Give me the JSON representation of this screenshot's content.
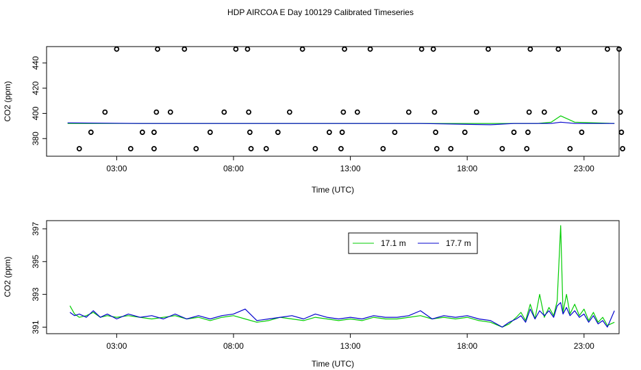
{
  "title": "HDP AIRCOA E  Day 100129  Calibrated Timeseries",
  "chart_data": [
    {
      "type": "scatter",
      "xlabel": "Time (UTC)",
      "ylabel": "CO2 (ppm)",
      "xlim": [
        0.0,
        24.5
      ],
      "ylim": [
        366,
        453
      ],
      "xticks": [
        3,
        8,
        13,
        18,
        23
      ],
      "xtick_labels": [
        "03:00",
        "08:00",
        "13:00",
        "18:00",
        "23:00"
      ],
      "yticks": [
        380,
        400,
        420,
        440
      ],
      "grid": false,
      "points": [
        {
          "x": 1.4,
          "y": 372
        },
        {
          "x": 1.9,
          "y": 385
        },
        {
          "x": 2.5,
          "y": 401
        },
        {
          "x": 3.0,
          "y": 451
        },
        {
          "x": 3.6,
          "y": 372
        },
        {
          "x": 4.1,
          "y": 385
        },
        {
          "x": 4.6,
          "y": 372
        },
        {
          "x": 4.6,
          "y": 385
        },
        {
          "x": 4.7,
          "y": 401
        },
        {
          "x": 4.75,
          "y": 451
        },
        {
          "x": 5.3,
          "y": 401
        },
        {
          "x": 5.9,
          "y": 451
        },
        {
          "x": 6.4,
          "y": 372
        },
        {
          "x": 7.0,
          "y": 385
        },
        {
          "x": 7.6,
          "y": 401
        },
        {
          "x": 8.1,
          "y": 451
        },
        {
          "x": 8.6,
          "y": 451
        },
        {
          "x": 8.65,
          "y": 401
        },
        {
          "x": 8.7,
          "y": 385
        },
        {
          "x": 8.75,
          "y": 372
        },
        {
          "x": 9.4,
          "y": 372
        },
        {
          "x": 9.9,
          "y": 385
        },
        {
          "x": 10.4,
          "y": 401
        },
        {
          "x": 10.95,
          "y": 451
        },
        {
          "x": 11.5,
          "y": 372
        },
        {
          "x": 12.1,
          "y": 385
        },
        {
          "x": 12.6,
          "y": 372
        },
        {
          "x": 12.65,
          "y": 385
        },
        {
          "x": 12.7,
          "y": 401
        },
        {
          "x": 12.75,
          "y": 451
        },
        {
          "x": 13.3,
          "y": 401
        },
        {
          "x": 13.85,
          "y": 451
        },
        {
          "x": 14.4,
          "y": 372
        },
        {
          "x": 14.9,
          "y": 385
        },
        {
          "x": 15.5,
          "y": 401
        },
        {
          "x": 16.05,
          "y": 451
        },
        {
          "x": 16.55,
          "y": 451
        },
        {
          "x": 16.6,
          "y": 401
        },
        {
          "x": 16.65,
          "y": 385
        },
        {
          "x": 16.7,
          "y": 372
        },
        {
          "x": 17.3,
          "y": 372
        },
        {
          "x": 17.9,
          "y": 385
        },
        {
          "x": 18.4,
          "y": 401
        },
        {
          "x": 18.9,
          "y": 451
        },
        {
          "x": 19.5,
          "y": 372
        },
        {
          "x": 20.0,
          "y": 385
        },
        {
          "x": 20.55,
          "y": 372
        },
        {
          "x": 20.6,
          "y": 385
        },
        {
          "x": 20.65,
          "y": 401
        },
        {
          "x": 20.7,
          "y": 451
        },
        {
          "x": 21.3,
          "y": 401
        },
        {
          "x": 21.9,
          "y": 451
        },
        {
          "x": 22.4,
          "y": 372
        },
        {
          "x": 22.9,
          "y": 385
        },
        {
          "x": 23.45,
          "y": 401
        },
        {
          "x": 24.0,
          "y": 451
        },
        {
          "x": 24.5,
          "y": 451
        },
        {
          "x": 24.55,
          "y": 401
        },
        {
          "x": 24.6,
          "y": 385
        },
        {
          "x": 24.65,
          "y": 372
        }
      ],
      "series": [
        {
          "color": "#00cc00",
          "x": [
            0.9,
            4,
            8,
            12,
            16,
            19,
            20,
            21,
            21.6,
            22.0,
            22.6,
            24.3
          ],
          "y": [
            392,
            392,
            392,
            392,
            392,
            392,
            392,
            392,
            393,
            398,
            393,
            392
          ]
        },
        {
          "color": "#0000cc",
          "x": [
            0.9,
            4,
            8,
            12,
            16,
            19,
            20,
            21,
            21.6,
            22.0,
            22.6,
            24.3
          ],
          "y": [
            392.5,
            392,
            392,
            392,
            392,
            391,
            392,
            392,
            392,
            393,
            392,
            392
          ]
        }
      ]
    },
    {
      "type": "line",
      "xlabel": "Time (UTC)",
      "ylabel": "CO2 (ppm)",
      "xlim": [
        0.0,
        24.5
      ],
      "ylim": [
        390.6,
        397.5
      ],
      "xticks": [
        3,
        8,
        13,
        18,
        23
      ],
      "xtick_labels": [
        "03:00",
        "08:00",
        "13:00",
        "18:00",
        "23:00"
      ],
      "yticks": [
        391,
        393,
        395,
        397
      ],
      "grid": false,
      "legend": "top-center",
      "series": [
        {
          "name": "17.1 m",
          "color": "#00cc00",
          "x": [
            1.0,
            1.2,
            1.4,
            1.7,
            2.0,
            2.3,
            2.6,
            3.0,
            3.5,
            4.0,
            4.5,
            5.0,
            5.5,
            6.0,
            6.5,
            7.0,
            7.5,
            8.0,
            8.5,
            9.0,
            9.5,
            10.0,
            10.5,
            11.0,
            11.5,
            12.0,
            12.5,
            13.0,
            13.5,
            14.0,
            14.5,
            15.0,
            15.5,
            16.0,
            16.5,
            17.0,
            17.5,
            18.0,
            18.5,
            19.0,
            19.5,
            19.8,
            20.1,
            20.3,
            20.5,
            20.7,
            20.9,
            21.1,
            21.3,
            21.5,
            21.7,
            21.85,
            22.0,
            22.1,
            22.25,
            22.4,
            22.6,
            22.8,
            23.0,
            23.2,
            23.4,
            23.6,
            23.8,
            24.0,
            24.3
          ],
          "y": [
            392.3,
            391.8,
            391.6,
            391.7,
            391.9,
            391.6,
            391.7,
            391.6,
            391.7,
            391.6,
            391.5,
            391.6,
            391.7,
            391.5,
            391.6,
            391.4,
            391.6,
            391.7,
            391.5,
            391.3,
            391.4,
            391.6,
            391.5,
            391.4,
            391.6,
            391.5,
            391.4,
            391.5,
            391.4,
            391.6,
            391.5,
            391.5,
            391.6,
            391.7,
            391.5,
            391.6,
            391.5,
            391.6,
            391.4,
            391.3,
            391.0,
            391.2,
            391.6,
            391.9,
            391.4,
            392.4,
            391.5,
            393.0,
            391.6,
            392.2,
            391.7,
            392.6,
            397.2,
            391.9,
            393.0,
            391.8,
            392.4,
            391.7,
            392.1,
            391.4,
            391.9,
            391.3,
            391.6,
            391.1,
            391.3
          ]
        },
        {
          "name": "17.7 m",
          "color": "#0000cc",
          "x": [
            1.0,
            1.2,
            1.4,
            1.7,
            2.0,
            2.3,
            2.6,
            3.0,
            3.5,
            4.0,
            4.5,
            5.0,
            5.5,
            6.0,
            6.5,
            7.0,
            7.5,
            8.0,
            8.5,
            9.0,
            9.5,
            10.0,
            10.5,
            11.0,
            11.5,
            12.0,
            12.5,
            13.0,
            13.5,
            14.0,
            14.5,
            15.0,
            15.5,
            16.0,
            16.5,
            17.0,
            17.5,
            18.0,
            18.5,
            19.0,
            19.5,
            19.8,
            20.1,
            20.3,
            20.5,
            20.7,
            20.9,
            21.1,
            21.3,
            21.5,
            21.7,
            21.85,
            22.0,
            22.1,
            22.25,
            22.4,
            22.6,
            22.8,
            23.0,
            23.2,
            23.4,
            23.6,
            23.8,
            24.0,
            24.3
          ],
          "y": [
            391.9,
            391.7,
            391.8,
            391.6,
            392.0,
            391.6,
            391.8,
            391.5,
            391.8,
            391.6,
            391.7,
            391.5,
            391.8,
            391.5,
            391.7,
            391.5,
            391.7,
            391.8,
            392.1,
            391.4,
            391.5,
            391.6,
            391.7,
            391.5,
            391.8,
            391.6,
            391.5,
            391.6,
            391.5,
            391.7,
            391.6,
            391.6,
            391.7,
            392.0,
            391.5,
            391.7,
            391.6,
            391.7,
            391.5,
            391.4,
            391.0,
            391.3,
            391.5,
            391.7,
            391.3,
            392.1,
            391.5,
            392.0,
            391.7,
            392.0,
            391.6,
            392.3,
            392.5,
            391.8,
            392.2,
            391.7,
            392.0,
            391.6,
            391.8,
            391.3,
            391.7,
            391.2,
            391.4,
            391.0,
            392.0
          ]
        }
      ]
    }
  ]
}
